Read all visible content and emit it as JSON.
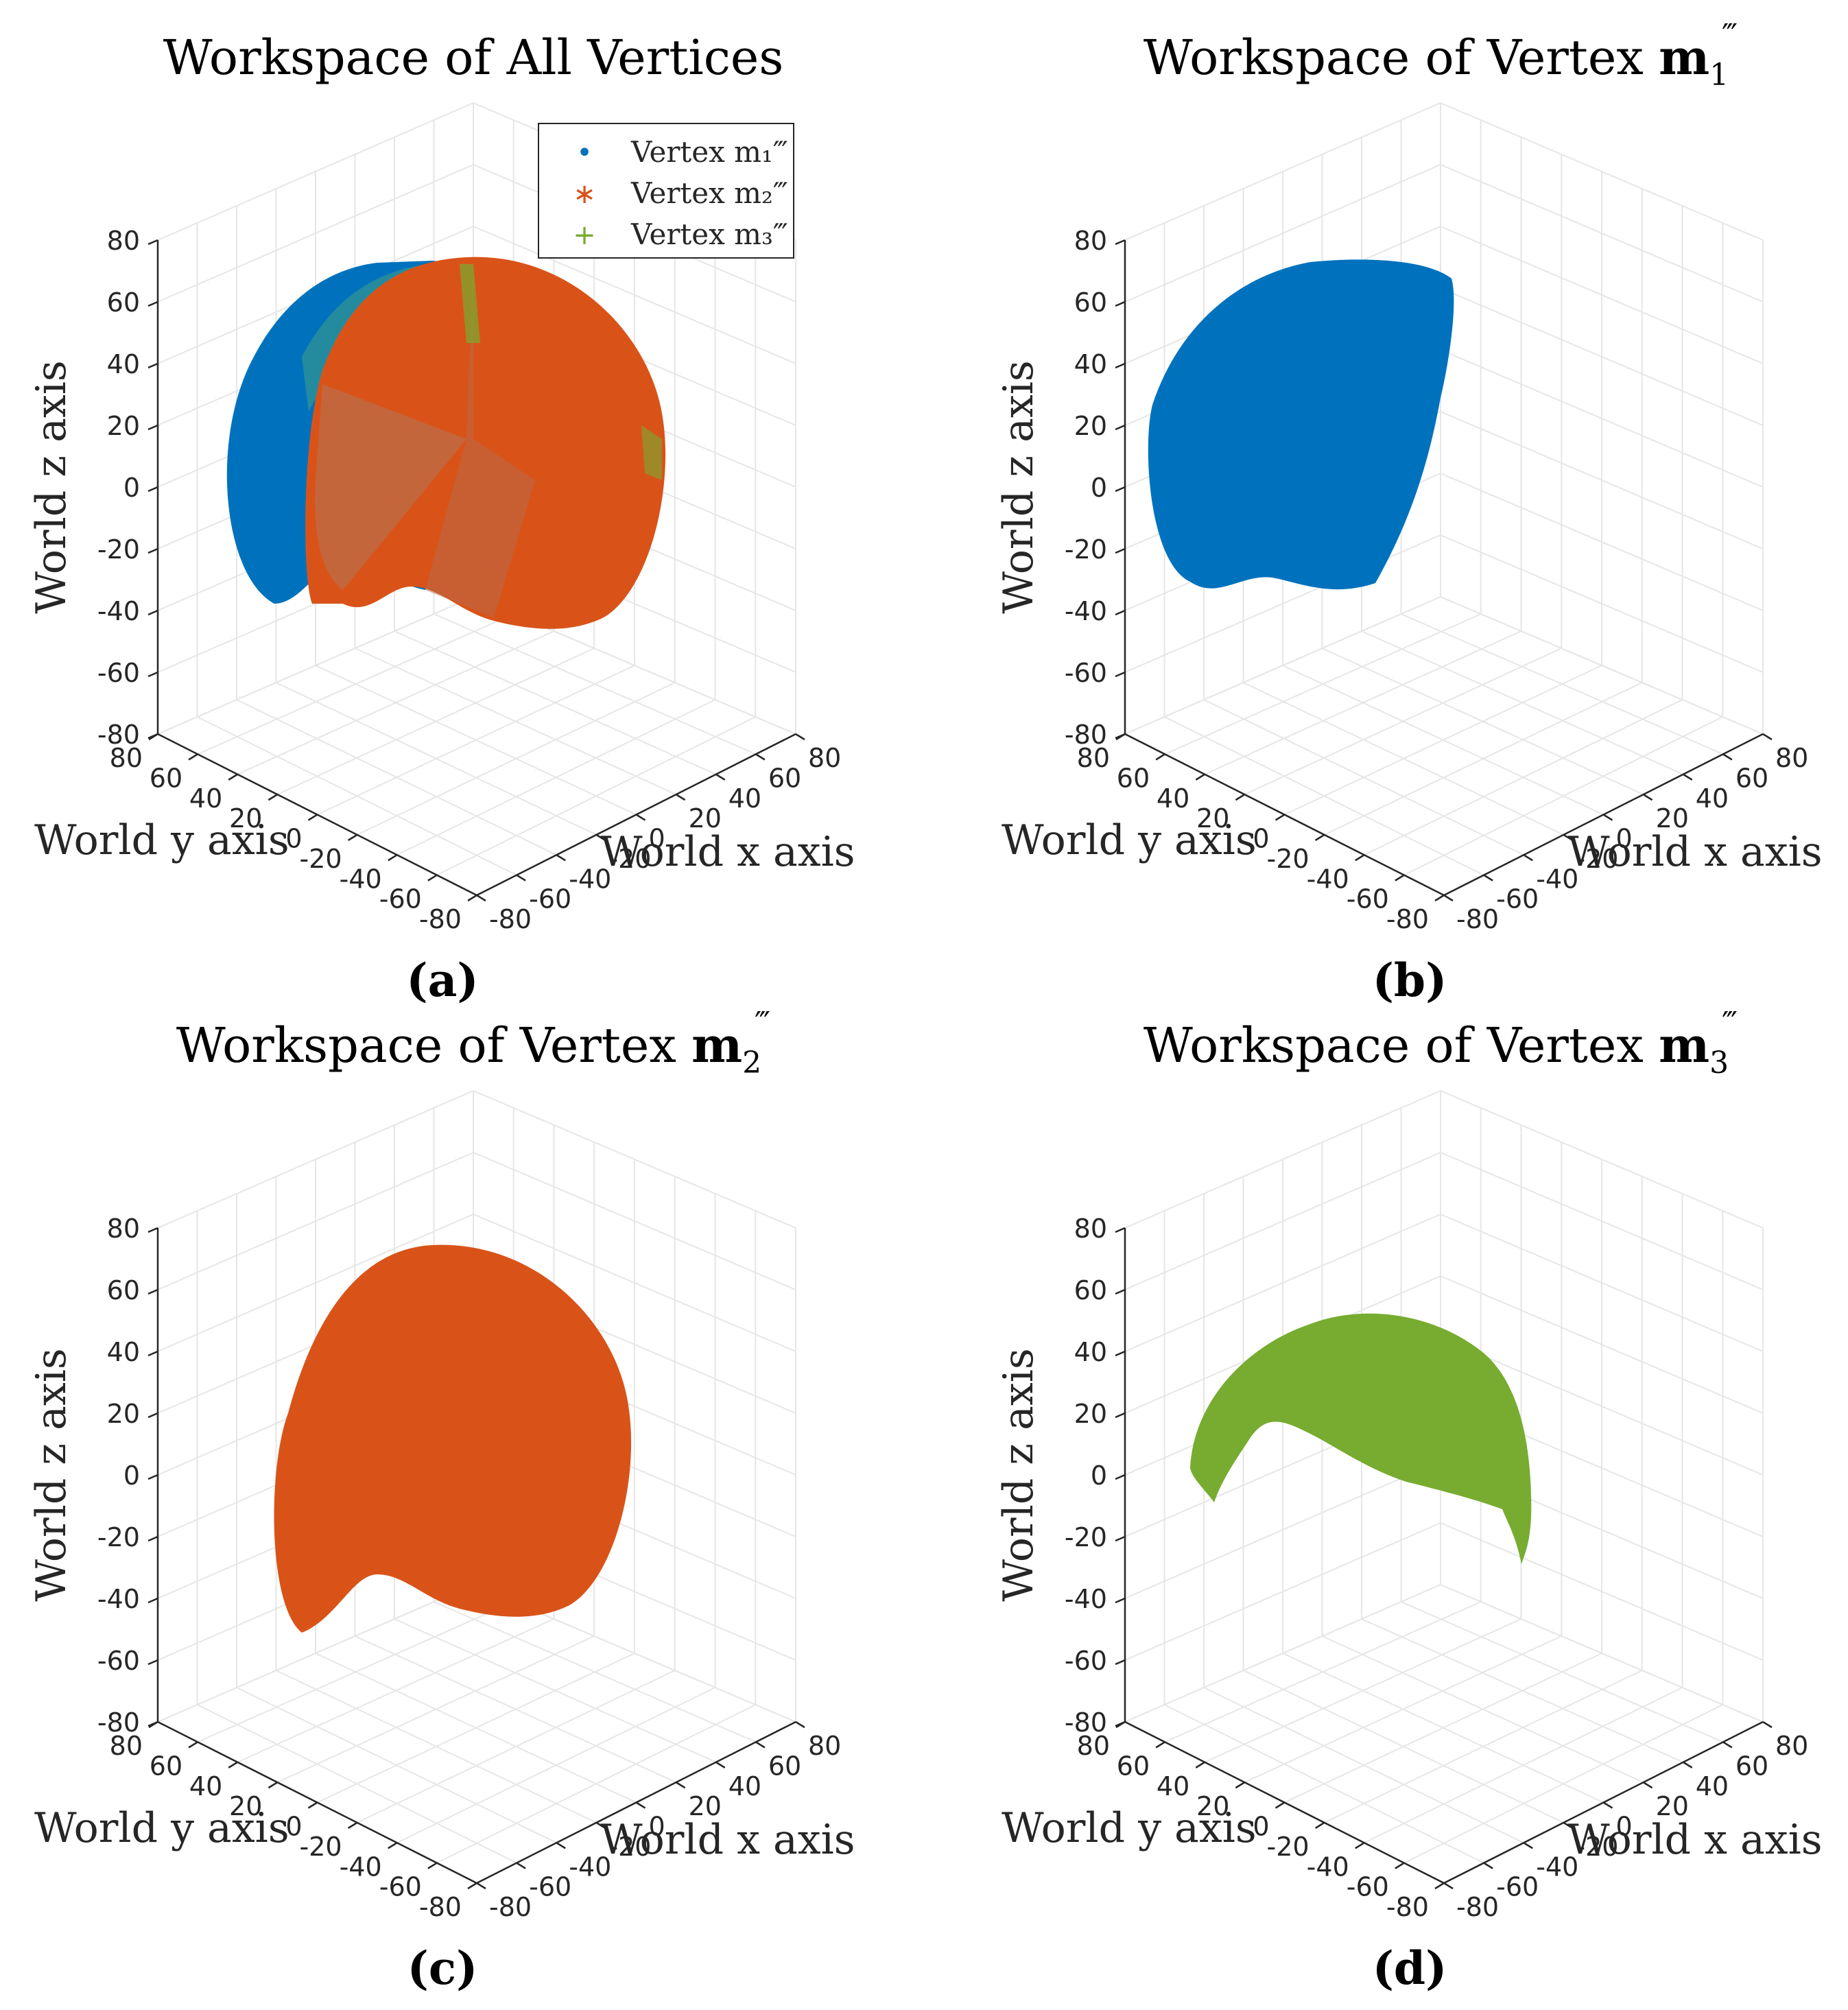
{
  "chart_data": [
    {
      "type": "scatter",
      "panel": "(a)",
      "title": "Workspace of All Vertices",
      "title_main": "Workspace of All Vertices",
      "title_bold": "",
      "title_sub": "",
      "xlabel": "World x axis",
      "ylabel": "World y axis",
      "zlabel": "World z axis",
      "xlim": [
        -80,
        80
      ],
      "ylim": [
        -80,
        80
      ],
      "zlim": [
        -80,
        80
      ],
      "xticks": [
        "-80",
        "-60",
        "-40",
        "-20",
        "0",
        "20",
        "40",
        "60",
        "80"
      ],
      "yticks": [
        "80",
        "60",
        "40",
        "20",
        "0",
        "-20",
        "-40",
        "-60",
        "-80"
      ],
      "zticks": [
        "80",
        "60",
        "40",
        "20",
        "0",
        "-20",
        "-40",
        "-60",
        "-80"
      ],
      "grid": true,
      "legend": {
        "placement": "top-right",
        "entries": [
          {
            "label": "Vertex m₁‴",
            "marker": "•",
            "color": "#0072BD"
          },
          {
            "label": "Vertex m₂‴",
            "marker": "∗",
            "color": "#D95319"
          },
          {
            "label": "Vertex m₃‴",
            "marker": "+",
            "color": "#77AC30"
          }
        ]
      },
      "series": [
        {
          "name": "Vertex m₁‴",
          "color": "#0072BD"
        },
        {
          "name": "Vertex m₂‴",
          "color": "#D95319"
        },
        {
          "name": "Vertex m₃‴",
          "color": "#77AC30"
        }
      ]
    },
    {
      "type": "scatter",
      "panel": "(b)",
      "title": "Workspace of Vertex m₁‴",
      "title_main": "Workspace of Vertex ",
      "title_bold": "m",
      "title_sub": "1",
      "xlabel": "World x axis",
      "ylabel": "World y axis",
      "zlabel": "World z axis",
      "xlim": [
        -80,
        80
      ],
      "ylim": [
        -80,
        80
      ],
      "zlim": [
        -80,
        80
      ],
      "xticks": [
        "-80",
        "-60",
        "-40",
        "-20",
        "0",
        "20",
        "40",
        "60",
        "80"
      ],
      "yticks": [
        "80",
        "60",
        "40",
        "20",
        "0",
        "-20",
        "-40",
        "-60",
        "-80"
      ],
      "zticks": [
        "80",
        "60",
        "40",
        "20",
        "0",
        "-20",
        "-40",
        "-60",
        "-80"
      ],
      "grid": true,
      "series": [
        {
          "name": "Vertex m₁‴",
          "color": "#0072BD"
        }
      ]
    },
    {
      "type": "scatter",
      "panel": "(c)",
      "title": "Workspace of Vertex m₂‴",
      "title_main": "Workspace of Vertex ",
      "title_bold": "m",
      "title_sub": "2",
      "xlabel": "World x axis",
      "ylabel": "World y axis",
      "zlabel": "World z axis",
      "xlim": [
        -80,
        80
      ],
      "ylim": [
        -80,
        80
      ],
      "zlim": [
        -80,
        80
      ],
      "xticks": [
        "-80",
        "-60",
        "-40",
        "-20",
        "0",
        "20",
        "40",
        "60",
        "80"
      ],
      "yticks": [
        "80",
        "60",
        "40",
        "20",
        "0",
        "-20",
        "-40",
        "-60",
        "-80"
      ],
      "zticks": [
        "80",
        "60",
        "40",
        "20",
        "0",
        "-20",
        "-40",
        "-60",
        "-80"
      ],
      "grid": true,
      "series": [
        {
          "name": "Vertex m₂‴",
          "color": "#D95319"
        }
      ]
    },
    {
      "type": "scatter",
      "panel": "(d)",
      "title": "Workspace of Vertex m₃‴",
      "title_main": "Workspace of Vertex ",
      "title_bold": "m",
      "title_sub": "3",
      "xlabel": "World x axis",
      "ylabel": "World y axis",
      "zlabel": "World z axis",
      "xlim": [
        -80,
        80
      ],
      "ylim": [
        -80,
        80
      ],
      "zlim": [
        -80,
        80
      ],
      "xticks": [
        "-80",
        "-60",
        "-40",
        "-20",
        "0",
        "20",
        "40",
        "60",
        "80"
      ],
      "yticks": [
        "80",
        "60",
        "40",
        "20",
        "0",
        "-20",
        "-40",
        "-60",
        "-80"
      ],
      "zticks": [
        "80",
        "60",
        "40",
        "20",
        "0",
        "-20",
        "-40",
        "-60",
        "-80"
      ],
      "grid": true,
      "series": [
        {
          "name": "Vertex m₃‴",
          "color": "#77AC30"
        }
      ]
    }
  ]
}
